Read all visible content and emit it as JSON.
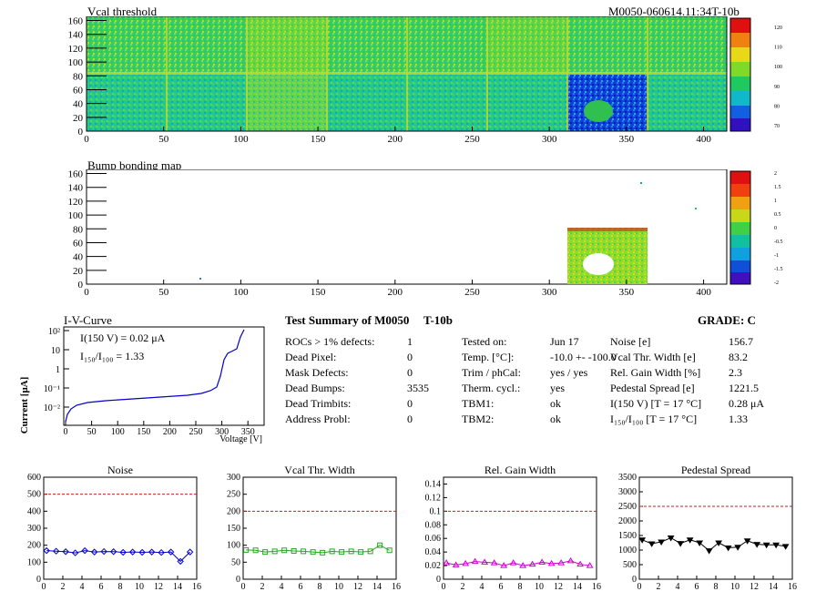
{
  "maps": {
    "vcal": {
      "title": "Vcal threshold",
      "id": "M0050-060614.11:34T-10b",
      "x_ticks": [
        "0",
        "50",
        "100",
        "150",
        "200",
        "250",
        "300",
        "350",
        "400"
      ],
      "y_ticks": [
        "0",
        "20",
        "40",
        "60",
        "80",
        "100",
        "120",
        "140",
        "160"
      ],
      "palette_ticks": [
        "70",
        "80",
        "90",
        "100",
        "110",
        "120"
      ]
    },
    "bump": {
      "title": "Bump bonding map",
      "x_ticks": [
        "0",
        "50",
        "100",
        "150",
        "200",
        "250",
        "300",
        "350",
        "400"
      ],
      "y_ticks": [
        "0",
        "20",
        "40",
        "60",
        "80",
        "100",
        "120",
        "140",
        "160"
      ],
      "palette_ticks": [
        "-2",
        "-1.5",
        "-1",
        "-0.5",
        "0",
        "0.5",
        "1",
        "1.5",
        "2"
      ]
    }
  },
  "iv": {
    "title": "I-V-Curve",
    "ylabel": "Current [μA]",
    "xlabel": "Voltage [V]",
    "note1": "I(150 V) = 0.02 μA",
    "note2": "I₁₅₀/I₁₀₀ =  1.33",
    "x_ticks": [
      "0",
      "50",
      "100",
      "150",
      "200",
      "250",
      "300",
      "350"
    ],
    "y_ticks": [
      "10⁻²",
      "10⁻¹",
      "1",
      "10",
      "10²"
    ]
  },
  "summary": {
    "heading": "Test Summary of M0050",
    "tag": "T-10b",
    "grade": "GRADE:  C",
    "col1": [
      {
        "k": "ROCs > 1% defects:",
        "v": "1"
      },
      {
        "k": "Dead Pixel:",
        "v": "0"
      },
      {
        "k": "Mask Defects:",
        "v": "0"
      },
      {
        "k": "Dead Bumps:",
        "v": "3535"
      },
      {
        "k": "Dead Trimbits:",
        "v": "0"
      },
      {
        "k": "Address Probl:",
        "v": "0"
      }
    ],
    "col2": [
      {
        "k": "Tested on:",
        "v": "Jun 17"
      },
      {
        "k": "Temp. [°C]:",
        "v": "-10.0 +- -100.0"
      },
      {
        "k": "Trim / phCal:",
        "v": "yes / yes"
      },
      {
        "k": "Therm. cycl.:",
        "v": "yes"
      },
      {
        "k": "TBM1:",
        "v": "ok"
      },
      {
        "k": "TBM2:",
        "v": "ok"
      }
    ],
    "col3": [
      {
        "k": "Noise [e]",
        "v": "156.7"
      },
      {
        "k": "Vcal Thr. Width [e]",
        "v": "83.2"
      },
      {
        "k": "Rel. Gain Width [%]",
        "v": "2.3"
      },
      {
        "k": "Pedestal Spread [e]",
        "v": "1221.5"
      },
      {
        "k": "I(150 V) [T = 17 °C]",
        "v": "0.28 μA"
      },
      {
        "k": "I₁₅₀/I₁₀₀  [T = 17 °C]",
        "v": "1.33"
      }
    ]
  },
  "chart_data": [
    {
      "type": "line",
      "title": "Noise",
      "color": "#0000cc",
      "marker": "diamond",
      "x": [
        0,
        1,
        2,
        3,
        4,
        5,
        6,
        7,
        8,
        9,
        10,
        11,
        12,
        13,
        14,
        15
      ],
      "values": [
        168,
        165,
        162,
        155,
        168,
        160,
        163,
        162,
        158,
        160,
        158,
        160,
        157,
        160,
        105,
        160
      ],
      "ylim": [
        0,
        600
      ],
      "y_ticks": [
        "0",
        "100",
        "200",
        "300",
        "400",
        "500",
        "600"
      ],
      "x_ticks": [
        "0",
        "2",
        "4",
        "6",
        "8",
        "10",
        "12",
        "14",
        "16"
      ],
      "threshold": 500
    },
    {
      "type": "line",
      "title": "Vcal Thr. Width",
      "color": "#22aa22",
      "marker": "square",
      "x": [
        0,
        1,
        2,
        3,
        4,
        5,
        6,
        7,
        8,
        9,
        10,
        11,
        12,
        13,
        14,
        15
      ],
      "values": [
        86,
        85,
        80,
        82,
        85,
        83,
        82,
        80,
        78,
        82,
        80,
        82,
        80,
        82,
        100,
        85
      ],
      "ylim": [
        0,
        300
      ],
      "y_ticks": [
        "0",
        "50",
        "100",
        "150",
        "200",
        "250",
        "300"
      ],
      "x_ticks": [
        "0",
        "2",
        "4",
        "6",
        "8",
        "10",
        "12",
        "14",
        "16"
      ],
      "threshold": 200
    },
    {
      "type": "line",
      "title": "Rel. Gain Width",
      "color": "#cc00cc",
      "marker": "triangle",
      "x": [
        0,
        1,
        2,
        3,
        4,
        5,
        6,
        7,
        8,
        9,
        10,
        11,
        12,
        13,
        14,
        15
      ],
      "values": [
        0.024,
        0.021,
        0.023,
        0.026,
        0.025,
        0.024,
        0.02,
        0.024,
        0.02,
        0.022,
        0.025,
        0.023,
        0.024,
        0.027,
        0.022,
        0.02
      ],
      "ylim": [
        0,
        0.15
      ],
      "y_ticks": [
        "0",
        "0.02",
        "0.04",
        "0.06",
        "0.08",
        "0.1",
        "0.12",
        "0.14"
      ],
      "x_ticks": [
        "0",
        "2",
        "4",
        "6",
        "8",
        "10",
        "12",
        "14",
        "16"
      ],
      "threshold": 0.1
    },
    {
      "type": "line",
      "title": "Pedestal Spread",
      "color": "#000000",
      "marker": "triangle-down",
      "x": [
        0,
        1,
        2,
        3,
        4,
        5,
        6,
        7,
        8,
        9,
        10,
        11,
        12,
        13,
        14,
        15
      ],
      "values": [
        1350,
        1220,
        1280,
        1420,
        1230,
        1350,
        1250,
        980,
        1250,
        1080,
        1100,
        1320,
        1200,
        1180,
        1180,
        1130
      ],
      "ylim": [
        0,
        3500
      ],
      "y_ticks": [
        "0",
        "500",
        "1000",
        "1500",
        "2000",
        "2500",
        "3000",
        "3500"
      ],
      "x_ticks": [
        "0",
        "2",
        "4",
        "6",
        "8",
        "10",
        "12",
        "14",
        "16"
      ],
      "threshold": 2500
    }
  ]
}
